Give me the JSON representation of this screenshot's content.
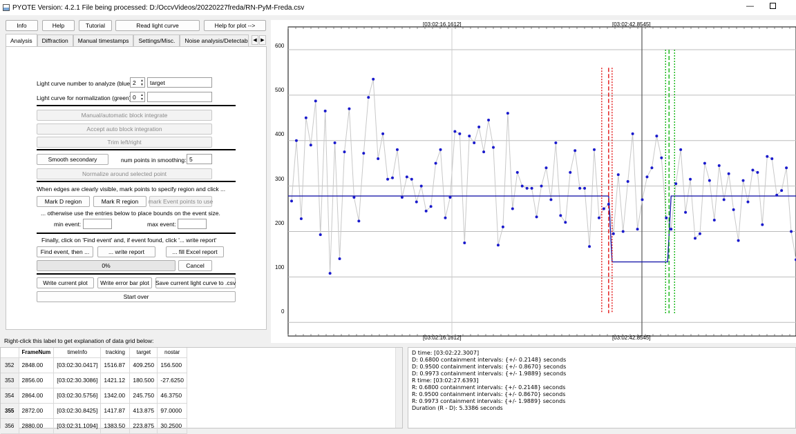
{
  "window": {
    "title": "PYOTE Version: 4.2.1  File being processed: D:/OccvVideos/20220227freda/RN-PyM-Freda.csv",
    "minimize_glyph": "—"
  },
  "toolbar": {
    "info": "Info",
    "help": "Help",
    "tutorial": "Tutorial",
    "read_light_curve": "Read light curve",
    "help_plot": "Help for plot -->"
  },
  "tabs": [
    "Analysis",
    "Diffraction",
    "Manual timestamps",
    "Settings/Misc.",
    "Noise analysis/Detectability"
  ],
  "tab_arrows": {
    "left": "◀",
    "right": "▶"
  },
  "analysis": {
    "lc_analyze_label": "Light curve number to analyze (blue):",
    "lc_analyze_value": "2",
    "lc_analyze_name": "target",
    "lc_norm_label": "Light curve for normalization (green):",
    "lc_norm_value": "0",
    "lc_norm_name": "",
    "block_integrate": "Manual/automatic block integrate",
    "accept_block": "Accept auto block integration",
    "trim": "Trim left/right",
    "smooth_secondary": "Smooth secondary",
    "num_points_label": "num points in smoothing:",
    "num_points_value": "5",
    "normalize": "Normalize around selected point",
    "edges_text": "When edges are clearly visible, mark points to specify region and click ...",
    "mark_d": "Mark D region",
    "mark_r": "Mark R region",
    "mark_event": "mark Event points to use",
    "otherwise_text": "... otherwise use the entries below to place bounds on the event size.",
    "min_event_label": "min event:",
    "max_event_label": "max event:",
    "finally_text": "Finally, click on 'Find event' and, if event found, click '... write report'",
    "find_event": "Find event, then ...",
    "write_report": "... write report",
    "fill_excel": "... fill Excel report",
    "progress": "0%",
    "cancel": "Cancel",
    "write_plot": "Write current plot",
    "write_error_bar": "Write error bar plot",
    "save_csv": "Save current light curve to .csv",
    "start_over": "Start over"
  },
  "plot": {
    "top_labels": [
      "[03:02:16.1612]",
      "[03:02:42.8545]"
    ],
    "bottom_labels": [
      "[03:02:16.1612]",
      "[03:02:42.8545]"
    ],
    "y_ticks": [
      "600",
      "500",
      "400",
      "300",
      "200",
      "100",
      "0"
    ]
  },
  "chart_data": {
    "type": "scatter",
    "ylim": [
      -30,
      650
    ],
    "grid": true,
    "series": [
      {
        "values": [
          267,
          400,
          228,
          450,
          390,
          487,
          193,
          465,
          108,
          395,
          140,
          375,
          470,
          275,
          223,
          372,
          495,
          535,
          360,
          415,
          315,
          318,
          380,
          275,
          320,
          315,
          265,
          300,
          245,
          255,
          350,
          380,
          230,
          275,
          420,
          415,
          175,
          410,
          395,
          430,
          375,
          445,
          385,
          170,
          210,
          460,
          250,
          330,
          300,
          295,
          295,
          232,
          300,
          340,
          270,
          395,
          235,
          220,
          330,
          378,
          295,
          295,
          167,
          380,
          230,
          250,
          260,
          195,
          325,
          200,
          310,
          415,
          205,
          270,
          320,
          340,
          410,
          362,
          230,
          205,
          305,
          380,
          242,
          315,
          185,
          195,
          350,
          312,
          225,
          345,
          270,
          327,
          248,
          180,
          312,
          265,
          335,
          330,
          215,
          365,
          360,
          280,
          290,
          340,
          200,
          138
        ],
        "name": ""
      }
    ],
    "fit_line": {
      "baseline": 278,
      "event_bottom": 133,
      "d_index": 140,
      "r_index": 170
    },
    "d_region": [
      138,
      142
    ],
    "r_region": [
      168,
      173
    ]
  },
  "data_grid": {
    "header_label": "Right-click this label to get explanation of data grid below:",
    "columns": [
      "FrameNum",
      "timeInfo",
      "tracking",
      "target",
      "nostar"
    ],
    "rows": [
      {
        "idx": "352",
        "cells": [
          "2848.00",
          "[03:02:30.0417]",
          "1516.87",
          "409.250",
          "156.500"
        ]
      },
      {
        "idx": "353",
        "cells": [
          "2856.00",
          "[03:02:30.3086]",
          "1421.12",
          "180.500",
          "-27.6250"
        ]
      },
      {
        "idx": "354",
        "cells": [
          "2864.00",
          "[03:02:30.5756]",
          "1342.00",
          "245.750",
          "46.3750"
        ]
      },
      {
        "idx": "355",
        "cells": [
          "2872.00",
          "[03:02:30.8425]",
          "1417.87",
          "413.875",
          "97.0000"
        ]
      },
      {
        "idx": "356",
        "cells": [
          "2880.00",
          "[03:02:31.1094]",
          "1383.50",
          "223.875",
          "30.2500"
        ]
      }
    ]
  },
  "report": {
    "lines": [
      "D time: [03:02:22.3007]",
      "D: 0.6800 containment intervals: {+/- 0.2148} seconds",
      "D: 0.9500 containment intervals: {+/- 0.8670} seconds",
      "D: 0.9973 containment intervals: {+/- 1.9889} seconds",
      "",
      "R time: [03:02:27.6393]",
      "R: 0.6800 containment intervals: {+/- 0.2148} seconds",
      "R: 0.9500 containment intervals: {+/- 0.8670} seconds",
      "R: 0.9973 containment intervals: {+/- 1.9889} seconds",
      "",
      "Duration (R - D): 5.3386 seconds"
    ]
  },
  "colors": {
    "series": "#1a1acc",
    "fit": "#1a1aaa",
    "d_marker": "#e00000",
    "r_marker": "#00b000"
  }
}
